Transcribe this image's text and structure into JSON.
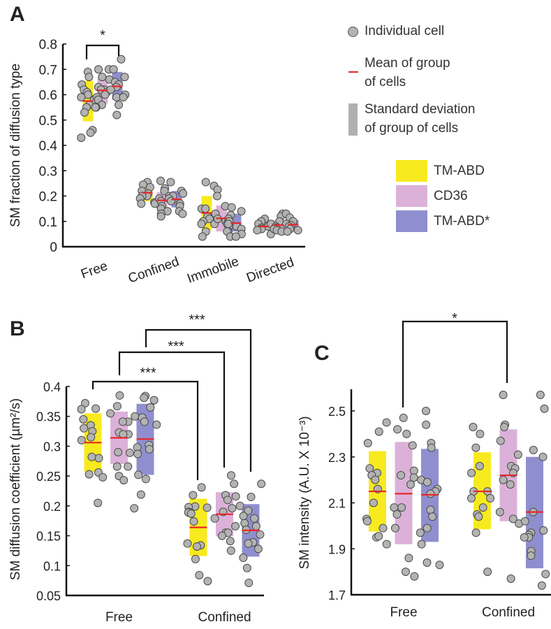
{
  "colors": {
    "TM-ABD": "#f7ea1f",
    "CD36": "#dcb1d9",
    "TM-ABD*": "#8f8fcf",
    "mean": "#e8262a",
    "point": "#b3b3b3",
    "sd": "#b0b0b0"
  },
  "legend": {
    "individual_cell": "Individual cell",
    "mean_line1": "Mean of group",
    "mean_line2": "of cells",
    "sd_line1": "Standard deviation",
    "sd_line2": "of group of cells",
    "groups": [
      "TM-ABD",
      "CD36",
      "TM-ABD*"
    ]
  },
  "chart_data": [
    {
      "panel": "A",
      "type": "scatter",
      "ylabel": "SM fraction of diffusion type",
      "ylim": [
        0,
        0.8
      ],
      "yticks": [
        "0",
        "0.1",
        "0.2",
        "0.3",
        "0.4",
        "0.5",
        "0.6",
        "0.7",
        "0.8"
      ],
      "categories": [
        "Free",
        "Confined",
        "Immobile",
        "Directed"
      ],
      "significance": [
        {
          "category": "Free",
          "from": "TM-ABD",
          "to": "TM-ABD*",
          "label": "*"
        }
      ],
      "series": [
        {
          "name": "TM-ABD",
          "mean": [
            0.575,
            0.213,
            0.133,
            0.08
          ],
          "sd_low": [
            0.495,
            0.18,
            0.065,
            0.065
          ],
          "sd_high": [
            0.655,
            0.235,
            0.2,
            0.095
          ],
          "points": [
            [
              0.69,
              0.67,
              0.64,
              0.62,
              0.61,
              0.6,
              0.59,
              0.58,
              0.56,
              0.55,
              0.53,
              0.46,
              0.45,
              0.43
            ],
            [
              0.255,
              0.245,
              0.235,
              0.22,
              0.21,
              0.2,
              0.2,
              0.19,
              0.175,
              0.17,
              0.17
            ],
            [
              0.255,
              0.24,
              0.15,
              0.15,
              0.12,
              0.11,
              0.1,
              0.09,
              0.09,
              0.06,
              0.04
            ],
            [
              0.11,
              0.1,
              0.09,
              0.08,
              0.075,
              0.07,
              0.065,
              0.05
            ]
          ]
        },
        {
          "name": "CD36",
          "mean": [
            0.617,
            0.183,
            0.112,
            0.085
          ],
          "sd_low": [
            0.565,
            0.15,
            0.06,
            0.07
          ],
          "sd_high": [
            0.668,
            0.215,
            0.163,
            0.105
          ],
          "points": [
            [
              0.7,
              0.7,
              0.67,
              0.63,
              0.62,
              0.62,
              0.61,
              0.6,
              0.59,
              0.58,
              0.56,
              0.55,
              0.55
            ],
            [
              0.26,
              0.23,
              0.22,
              0.2,
              0.19,
              0.18,
              0.16,
              0.15,
              0.14,
              0.13,
              0.12
            ],
            [
              0.225,
              0.2,
              0.16,
              0.13,
              0.11,
              0.1,
              0.09,
              0.08,
              0.06,
              0.06
            ],
            [
              0.13,
              0.12,
              0.1,
              0.09,
              0.08,
              0.075,
              0.07,
              0.065,
              0.06
            ]
          ]
        },
        {
          "name": "TM-ABD*",
          "mean": [
            0.633,
            0.187,
            0.093,
            0.087
          ],
          "sd_low": [
            0.58,
            0.155,
            0.06,
            0.07
          ],
          "sd_high": [
            0.69,
            0.22,
            0.13,
            0.105
          ],
          "points": [
            [
              0.74,
              0.7,
              0.67,
              0.66,
              0.65,
              0.64,
              0.63,
              0.62,
              0.6,
              0.59,
              0.59,
              0.56,
              0.52
            ],
            [
              0.255,
              0.22,
              0.21,
              0.2,
              0.19,
              0.18,
              0.17,
              0.16,
              0.14,
              0.13
            ],
            [
              0.155,
              0.14,
              0.125,
              0.11,
              0.1,
              0.09,
              0.08,
              0.07,
              0.05,
              0.04,
              0.04
            ],
            [
              0.13,
              0.115,
              0.1,
              0.09,
              0.085,
              0.08,
              0.07,
              0.065,
              0.06
            ]
          ]
        }
      ]
    },
    {
      "panel": "B",
      "type": "scatter",
      "ylabel": "SM diffusion coefficient (µm²/s)",
      "ylim": [
        0.05,
        0.4
      ],
      "yticks": [
        "0.05",
        "0.1",
        "0.15",
        "0.2",
        "0.25",
        "0.3",
        "0.35",
        "0.4"
      ],
      "categories": [
        "Free",
        "Confined"
      ],
      "significance": [
        {
          "group": "TM-ABD",
          "from": "Free",
          "to": "Confined",
          "label": "***"
        },
        {
          "group": "CD36",
          "from": "Free",
          "to": "Confined",
          "label": "***"
        },
        {
          "group": "TM-ABD*",
          "from": "Free",
          "to": "Confined",
          "label": "***"
        }
      ],
      "series": [
        {
          "name": "TM-ABD",
          "mean": [
            0.306,
            0.164
          ],
          "sd_low": [
            0.257,
            0.116
          ],
          "sd_high": [
            0.355,
            0.212
          ],
          "points": [
            [
              0.372,
              0.362,
              0.363,
              0.345,
              0.335,
              0.33,
              0.325,
              0.315,
              0.31,
              0.28,
              0.282,
              0.256,
              0.253,
              0.248,
              0.205
            ],
            [
              0.231,
              0.218,
              0.199,
              0.198,
              0.197,
              0.19,
              0.189,
              0.187,
              0.174,
              0.137,
              0.134,
              0.132,
              0.111,
              0.084,
              0.074
            ]
          ]
        },
        {
          "name": "CD36",
          "mean": [
            0.314,
            0.186
          ],
          "sd_low": [
            0.27,
            0.149
          ],
          "sd_high": [
            0.358,
            0.223
          ],
          "points": [
            [
              0.385,
              0.367,
              0.355,
              0.341,
              0.341,
              0.323,
              0.32,
              0.32,
              0.29,
              0.289,
              0.266,
              0.266,
              0.25,
              0.243
            ],
            [
              0.251,
              0.237,
              0.218,
              0.216,
              0.21,
              0.196,
              0.19,
              0.179,
              0.166,
              0.155,
              0.155,
              0.15,
              0.141,
              0.125
            ]
          ]
        },
        {
          "name": "TM-ABD*",
          "mean": [
            0.312,
            0.159
          ],
          "sd_low": [
            0.252,
            0.115
          ],
          "sd_high": [
            0.371,
            0.203
          ],
          "points": [
            [
              0.384,
              0.381,
              0.377,
              0.365,
              0.35,
              0.348,
              0.341,
              0.336,
              0.302,
              0.298,
              0.295,
              0.287,
              0.252,
              0.245,
              0.219,
              0.196
            ],
            [
              0.237,
              0.215,
              0.2,
              0.192,
              0.183,
              0.179,
              0.171,
              0.166,
              0.16,
              0.152,
              0.139,
              0.137,
              0.128,
              0.113,
              0.096,
              0.071
            ]
          ]
        }
      ]
    },
    {
      "panel": "C",
      "type": "scatter",
      "ylabel": "SM intensity (A.U. X 10⁻³)",
      "ylim": [
        1.7,
        2.6
      ],
      "yticks": [
        "1.7",
        "1.9",
        "2.1",
        "2.3",
        "2.5"
      ],
      "categories": [
        "Free",
        "Confined"
      ],
      "significance": [
        {
          "group": "CD36",
          "from": "Free",
          "to": "Confined",
          "label": "*"
        }
      ],
      "series": [
        {
          "name": "TM-ABD",
          "mean": [
            2.15,
            2.15
          ],
          "sd_low": [
            1.975,
            1.985
          ],
          "sd_high": [
            2.325,
            2.32
          ],
          "points": [
            [
              2.45,
              2.41,
              2.36,
              2.25,
              2.23,
              2.22,
              2.2,
              2.16,
              2.1,
              2.03,
              2.02,
              1.99,
              1.95,
              1.955,
              1.92
            ],
            [
              2.43,
              2.4,
              2.34,
              2.26,
              2.23,
              2.15,
              2.15,
              2.12,
              2.12,
              2.08,
              2.05,
              2.04,
              1.97,
              1.8
            ]
          ]
        },
        {
          "name": "CD36",
          "mean": [
            2.14,
            2.22
          ],
          "sd_low": [
            1.92,
            2.02
          ],
          "sd_high": [
            2.365,
            2.42
          ],
          "points": [
            [
              2.47,
              2.42,
              2.4,
              2.35,
              2.24,
              2.22,
              2.21,
              2.18,
              2.08,
              2.08,
              2.05,
              1.99,
              1.86,
              1.8,
              1.78
            ],
            [
              2.57,
              2.44,
              2.43,
              2.37,
              2.31,
              2.26,
              2.25,
              2.23,
              2.2,
              2.18,
              2.06,
              2.03,
              2.01,
              1.77
            ]
          ]
        },
        {
          "name": "TM-ABD*",
          "mean": [
            2.135,
            2.06
          ],
          "sd_low": [
            1.93,
            1.815
          ],
          "sd_high": [
            2.335,
            2.3
          ],
          "points": [
            [
              2.5,
              2.44,
              2.36,
              2.34,
              2.2,
              2.19,
              2.16,
              2.15,
              2.14,
              2.07,
              2.04,
              1.99,
              1.97,
              1.92,
              1.84,
              1.83
            ],
            [
              2.57,
              2.51,
              2.33,
              2.3,
              2.06,
              2.02,
              1.98,
              1.97,
              1.96,
              1.95,
              1.95,
              1.89,
              1.87,
              1.79,
              1.74
            ]
          ]
        }
      ]
    }
  ]
}
